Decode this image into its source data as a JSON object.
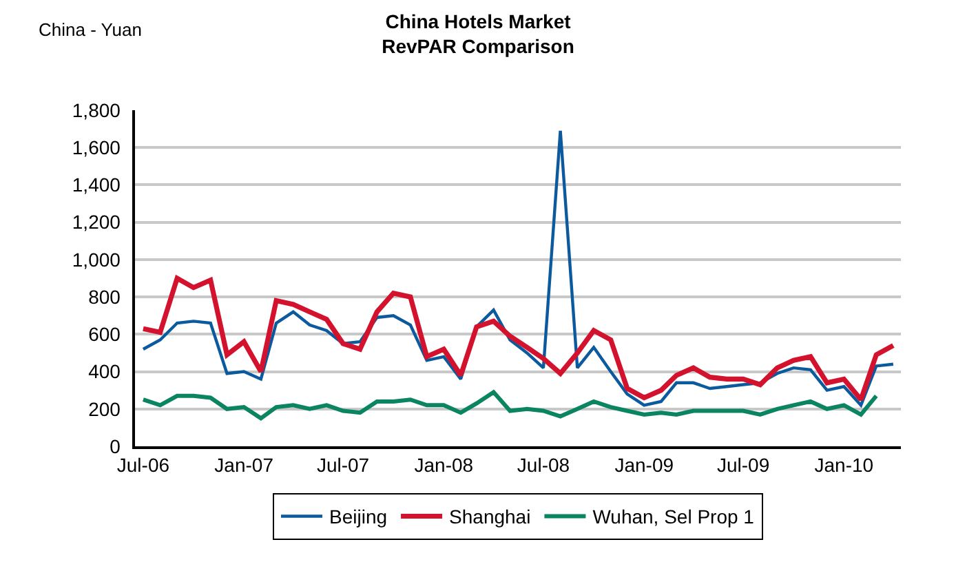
{
  "chart_data": {
    "type": "line",
    "title": "China Hotels Market\nRevPAR Comparison",
    "ylabel": "China - Yuan",
    "x": [
      "2006-07",
      "2006-08",
      "2006-09",
      "2006-10",
      "2006-11",
      "2006-12",
      "2007-01",
      "2007-02",
      "2007-03",
      "2007-04",
      "2007-05",
      "2007-06",
      "2007-07",
      "2007-08",
      "2007-09",
      "2007-10",
      "2007-11",
      "2007-12",
      "2008-01",
      "2008-02",
      "2008-03",
      "2008-04",
      "2008-05",
      "2008-06",
      "2008-07",
      "2008-08",
      "2008-09",
      "2008-10",
      "2008-11",
      "2008-12",
      "2009-01",
      "2009-02",
      "2009-03",
      "2009-04",
      "2009-05",
      "2009-06",
      "2009-07",
      "2009-08",
      "2009-09",
      "2009-10",
      "2009-11",
      "2009-12",
      "2010-01",
      "2010-02",
      "2010-03",
      "2010-04"
    ],
    "series": [
      {
        "name": "Beijing",
        "color": "#0b5a9e",
        "values": [
          520,
          570,
          660,
          670,
          660,
          390,
          400,
          360,
          660,
          720,
          650,
          620,
          550,
          560,
          690,
          700,
          650,
          460,
          480,
          360,
          640,
          730,
          570,
          500,
          420,
          1690,
          420,
          530,
          400,
          280,
          220,
          240,
          340,
          340,
          310,
          320,
          330,
          340,
          390,
          420,
          410,
          300,
          320,
          220,
          430,
          440
        ]
      },
      {
        "name": "Shanghai",
        "color": "#d3122e",
        "values": [
          630,
          610,
          900,
          850,
          890,
          490,
          560,
          400,
          780,
          760,
          720,
          680,
          550,
          520,
          720,
          820,
          800,
          480,
          520,
          380,
          640,
          670,
          590,
          530,
          470,
          390,
          500,
          620,
          570,
          310,
          260,
          300,
          380,
          420,
          370,
          360,
          360,
          330,
          420,
          460,
          480,
          340,
          360,
          250,
          490,
          540
        ]
      },
      {
        "name": "Wuhan, Sel Prop 1",
        "color": "#0b8461",
        "values": [
          250,
          220,
          270,
          270,
          260,
          200,
          210,
          150,
          210,
          220,
          200,
          220,
          190,
          180,
          240,
          240,
          250,
          220,
          220,
          180,
          230,
          290,
          190,
          200,
          190,
          160,
          200,
          240,
          210,
          190,
          170,
          180,
          170,
          190,
          190,
          190,
          190,
          170,
          200,
          220,
          240,
          200,
          220,
          170,
          270,
          null
        ]
      }
    ],
    "xlim": [
      "2006-06-16",
      "2010-04-15"
    ],
    "xticks": [
      {
        "value": "2006-07",
        "label": "Jul-06"
      },
      {
        "value": "2007-01",
        "label": "Jan-07"
      },
      {
        "value": "2007-07",
        "label": "Jul-07"
      },
      {
        "value": "2008-01",
        "label": "Jan-08"
      },
      {
        "value": "2008-07",
        "label": "Jul-08"
      },
      {
        "value": "2009-01",
        "label": "Jan-09"
      },
      {
        "value": "2009-07",
        "label": "Jul-09"
      },
      {
        "value": "2010-01",
        "label": "Jan-10"
      }
    ],
    "ylim": [
      0,
      1800
    ],
    "yticks": [
      0,
      200,
      400,
      600,
      800,
      {
        "value": 1000,
        "label": "1,000"
      },
      {
        "value": 1200,
        "label": "1,200"
      },
      {
        "value": 1400,
        "label": "1,400"
      },
      {
        "value": 1600,
        "label": "1,600"
      },
      {
        "value": 1800,
        "label": "1,800"
      }
    ],
    "grid": "y",
    "legend": "bottom",
    "marker": "none",
    "line_style": "solid"
  }
}
